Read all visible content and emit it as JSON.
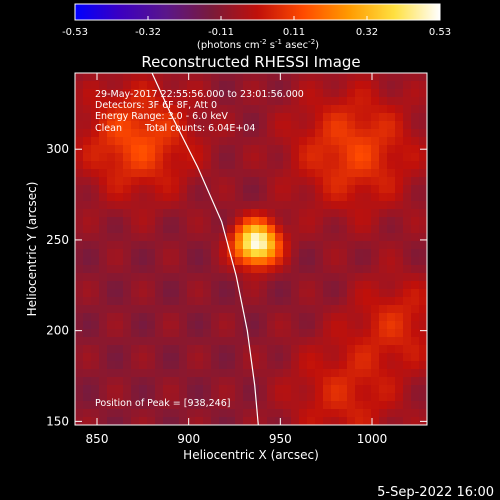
{
  "colorbar": {
    "ticks": [
      "-0.53",
      "-0.32",
      "-0.11",
      "0.11",
      "0.32",
      "0.53"
    ],
    "units_prefix": "(photons cm",
    "units_exp1": "-2",
    "units_mid": " s",
    "units_exp2": "-1",
    "units_mid2": " asec",
    "units_exp3": "-2",
    "units_suffix": ")",
    "min": -0.53,
    "max": 0.53,
    "colors": [
      "#0000ff",
      "#3c00c0",
      "#5a168a",
      "#7a1a3a",
      "#c0100a",
      "#ff4a00",
      "#ff9a00",
      "#ffe040",
      "#ffffff"
    ]
  },
  "chart_data": {
    "type": "heatmap",
    "title": "Reconstructed RHESSI Image",
    "xlabel": "Heliocentric X (arcsec)",
    "ylabel": "Heliocentric Y (arcsec)",
    "xlim": [
      838,
      1030
    ],
    "ylim": [
      148,
      342
    ],
    "xticks": [
      850,
      900,
      950,
      1000
    ],
    "yticks": [
      150,
      200,
      250,
      300
    ],
    "xtick_labels": [
      "850",
      "900",
      "950",
      "1000"
    ],
    "ytick_labels": [
      "150",
      "200",
      "250",
      "300"
    ],
    "grid": false,
    "sources": [
      {
        "x": 937,
        "y": 248,
        "sigma": 8.5,
        "amplitude": 0.53
      },
      {
        "x": 872,
        "y": 305,
        "sigma": 22,
        "amplitude": 0.22
      },
      {
        "x": 990,
        "y": 300,
        "sigma": 24,
        "amplitude": 0.2
      },
      {
        "x": 1015,
        "y": 205,
        "sigma": 18,
        "amplitude": 0.14
      },
      {
        "x": 985,
        "y": 165,
        "sigma": 22,
        "amplitude": 0.14
      }
    ],
    "background": -0.1,
    "limb_curve": [
      [
        880,
        342
      ],
      [
        890,
        320
      ],
      [
        905,
        290
      ],
      [
        918,
        260
      ],
      [
        926,
        230
      ],
      [
        932,
        200
      ],
      [
        936,
        170
      ],
      [
        938,
        148
      ]
    ],
    "annotations": {
      "time_range": "29-May-2017 22:55:56.000 to 23:01:56.000",
      "detectors": "Detectors: 3F 6F 8F, Att 0",
      "energy": "Energy Range: 3.0 - 6.0 keV",
      "method": "Clean",
      "counts": "Total counts: 6.04E+04",
      "peak": "Position of Peak = [938,246]"
    }
  },
  "footer": {
    "date": "5-Sep-2022 16:00"
  }
}
